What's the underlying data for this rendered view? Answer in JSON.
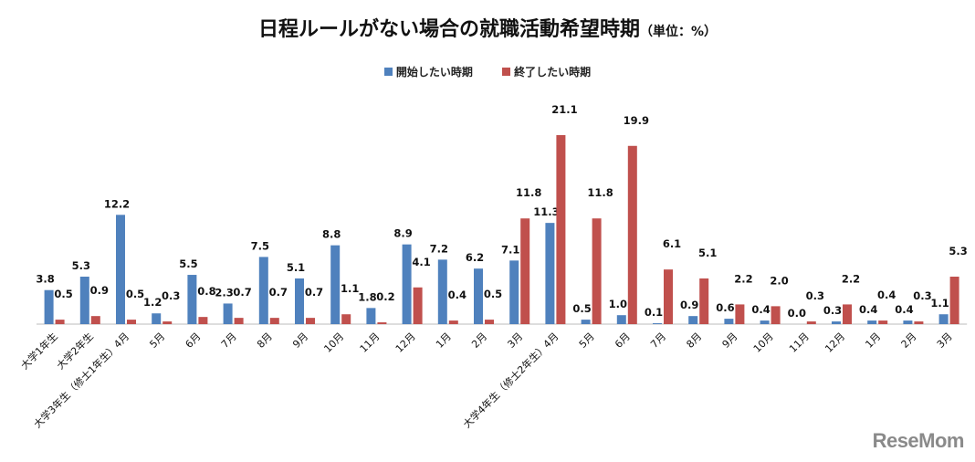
{
  "logo_text": "ReseMom",
  "chart_data": {
    "type": "bar",
    "title": "日程ルールがない場合の就職活動希望時期",
    "unit": "（単位：%）",
    "categories": [
      "大学1年生",
      "大学2年生",
      "大学3年生（修士1年生）4月",
      "5月",
      "6月",
      "7月",
      "8月",
      "9月",
      "10月",
      "11月",
      "12月",
      "1月",
      "2月",
      "3月",
      "大学4年生（修士2年生）4月",
      "5月",
      "6月",
      "7月",
      "8月",
      "9月",
      "10月",
      "11月",
      "12月",
      "1月",
      "2月",
      "3月"
    ],
    "series": [
      {
        "name": "開始したい時期",
        "color": "#4F81BD",
        "values": [
          3.8,
          5.3,
          12.2,
          1.2,
          5.5,
          2.3,
          7.5,
          5.1,
          8.8,
          1.8,
          8.9,
          7.2,
          6.2,
          7.1,
          11.3,
          0.5,
          1.0,
          0.1,
          0.9,
          0.6,
          0.4,
          0.0,
          0.3,
          0.4,
          0.4,
          1.1
        ]
      },
      {
        "name": "終了したい時期",
        "color": "#C0504D",
        "values": [
          0.5,
          0.9,
          0.5,
          0.3,
          0.8,
          0.7,
          0.7,
          0.7,
          1.1,
          0.2,
          4.1,
          0.4,
          0.5,
          11.8,
          21.1,
          11.8,
          19.9,
          6.1,
          5.1,
          2.2,
          2.0,
          0.3,
          2.2,
          0.4,
          0.3,
          5.3
        ]
      }
    ],
    "ylim": [
      0,
      21.1
    ],
    "grid": false,
    "legend_position": "top-center"
  }
}
